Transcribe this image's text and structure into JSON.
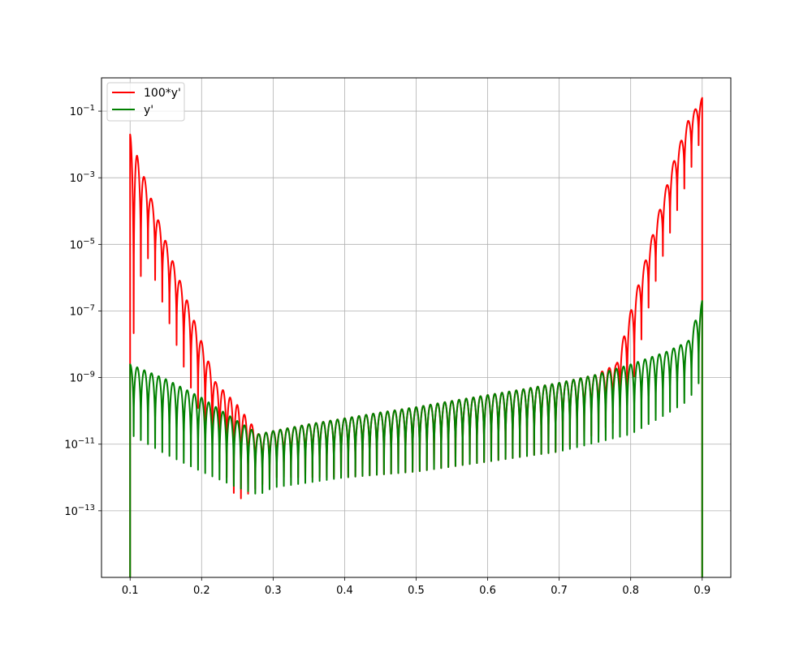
{
  "chart_data": {
    "type": "line",
    "title": "",
    "xlabel": "",
    "ylabel": "",
    "xlim": [
      0.06,
      0.94
    ],
    "ylim": [
      1e-15,
      1.0
    ],
    "yscale": "log",
    "grid": true,
    "legend_position": "top-left",
    "x_ticks": [
      {
        "value": 0.1,
        "label": "0.1"
      },
      {
        "value": 0.2,
        "label": "0.2"
      },
      {
        "value": 0.3,
        "label": "0.3"
      },
      {
        "value": 0.4,
        "label": "0.4"
      },
      {
        "value": 0.5,
        "label": "0.5"
      },
      {
        "value": 0.6,
        "label": "0.6"
      },
      {
        "value": 0.7,
        "label": "0.7"
      },
      {
        "value": 0.8,
        "label": "0.8"
      },
      {
        "value": 0.9,
        "label": "0.9"
      }
    ],
    "y_ticks": [
      {
        "value": 0.1,
        "base": "10",
        "exp": "−1"
      },
      {
        "value": 0.001,
        "base": "10",
        "exp": "−3"
      },
      {
        "value": 1e-05,
        "base": "10",
        "exp": "−5"
      },
      {
        "value": 1e-07,
        "base": "10",
        "exp": "−7"
      },
      {
        "value": 1e-09,
        "base": "10",
        "exp": "−9"
      },
      {
        "value": 1e-11,
        "base": "10",
        "exp": "−11"
      },
      {
        "value": 1e-13,
        "base": "10",
        "exp": "−13"
      }
    ],
    "series": [
      {
        "name": "100*y'",
        "color": "#ff0000",
        "domain": [
          0.1,
          0.9
        ],
        "oscillations": 80,
        "envelope": [
          [
            0.1,
            0.02
          ],
          [
            0.12,
            0.001
          ],
          [
            0.14,
            5e-05
          ],
          [
            0.16,
            3e-06
          ],
          [
            0.18,
            2e-07
          ],
          [
            0.2,
            1.2e-08
          ],
          [
            0.22,
            7e-10
          ],
          [
            0.25,
            1.5e-10
          ],
          [
            0.28,
            2e-11
          ],
          [
            0.3,
            2.5e-11
          ],
          [
            0.35,
            4e-11
          ],
          [
            0.4,
            6e-11
          ],
          [
            0.45,
            9e-11
          ],
          [
            0.5,
            1.3e-10
          ],
          [
            0.55,
            2e-10
          ],
          [
            0.6,
            3e-10
          ],
          [
            0.65,
            4.5e-10
          ],
          [
            0.7,
            7e-10
          ],
          [
            0.75,
            1.2e-09
          ],
          [
            0.78,
            2.5e-09
          ],
          [
            0.8,
            1e-07
          ],
          [
            0.82,
            3e-06
          ],
          [
            0.84,
            0.0001
          ],
          [
            0.86,
            0.003
          ],
          [
            0.88,
            0.05
          ],
          [
            0.9,
            0.25
          ]
        ],
        "troughs": [
          [
            0.1,
            3e-09
          ],
          [
            0.12,
            8e-06
          ],
          [
            0.14,
            4e-07
          ],
          [
            0.16,
            2e-08
          ],
          [
            0.18,
            1e-09
          ],
          [
            0.2,
            6e-11
          ],
          [
            0.22,
            5e-12
          ],
          [
            0.25,
            2e-13
          ],
          [
            0.3,
            1e-12
          ],
          [
            0.4,
            1e-12
          ],
          [
            0.5,
            1.5e-12
          ],
          [
            0.6,
            3e-12
          ],
          [
            0.7,
            6e-12
          ],
          [
            0.75,
            2e-11
          ],
          [
            0.78,
            5e-11
          ],
          [
            0.8,
            3e-10
          ],
          [
            0.82,
            5e-08
          ],
          [
            0.84,
            2e-06
          ],
          [
            0.86,
            5e-05
          ],
          [
            0.88,
            0.001
          ],
          [
            0.9,
            0.02
          ]
        ]
      },
      {
        "name": "y'",
        "color": "#008000",
        "domain": [
          0.1,
          0.9
        ],
        "oscillations": 80,
        "envelope": [
          [
            0.1,
            2.5e-09
          ],
          [
            0.15,
            9e-10
          ],
          [
            0.2,
            2.5e-10
          ],
          [
            0.25,
            5e-11
          ],
          [
            0.28,
            2e-11
          ],
          [
            0.3,
            2.5e-11
          ],
          [
            0.35,
            4e-11
          ],
          [
            0.4,
            6e-11
          ],
          [
            0.45,
            9e-11
          ],
          [
            0.5,
            1.3e-10
          ],
          [
            0.55,
            2e-10
          ],
          [
            0.6,
            3e-10
          ],
          [
            0.65,
            4.5e-10
          ],
          [
            0.7,
            7e-10
          ],
          [
            0.75,
            1.2e-09
          ],
          [
            0.8,
            2.5e-09
          ],
          [
            0.85,
            6e-09
          ],
          [
            0.88,
            1.2e-08
          ],
          [
            0.9,
            2e-07
          ]
        ],
        "troughs": [
          [
            0.1,
            2e-11
          ],
          [
            0.15,
            5e-12
          ],
          [
            0.2,
            1.5e-12
          ],
          [
            0.25,
            5e-13
          ],
          [
            0.28,
            3e-13
          ],
          [
            0.3,
            5e-13
          ],
          [
            0.4,
            1e-12
          ],
          [
            0.5,
            1.5e-12
          ],
          [
            0.6,
            3e-12
          ],
          [
            0.7,
            6e-12
          ],
          [
            0.8,
            2e-11
          ],
          [
            0.85,
            8e-11
          ],
          [
            0.88,
            2e-10
          ],
          [
            0.9,
            1e-09
          ]
        ]
      }
    ]
  }
}
